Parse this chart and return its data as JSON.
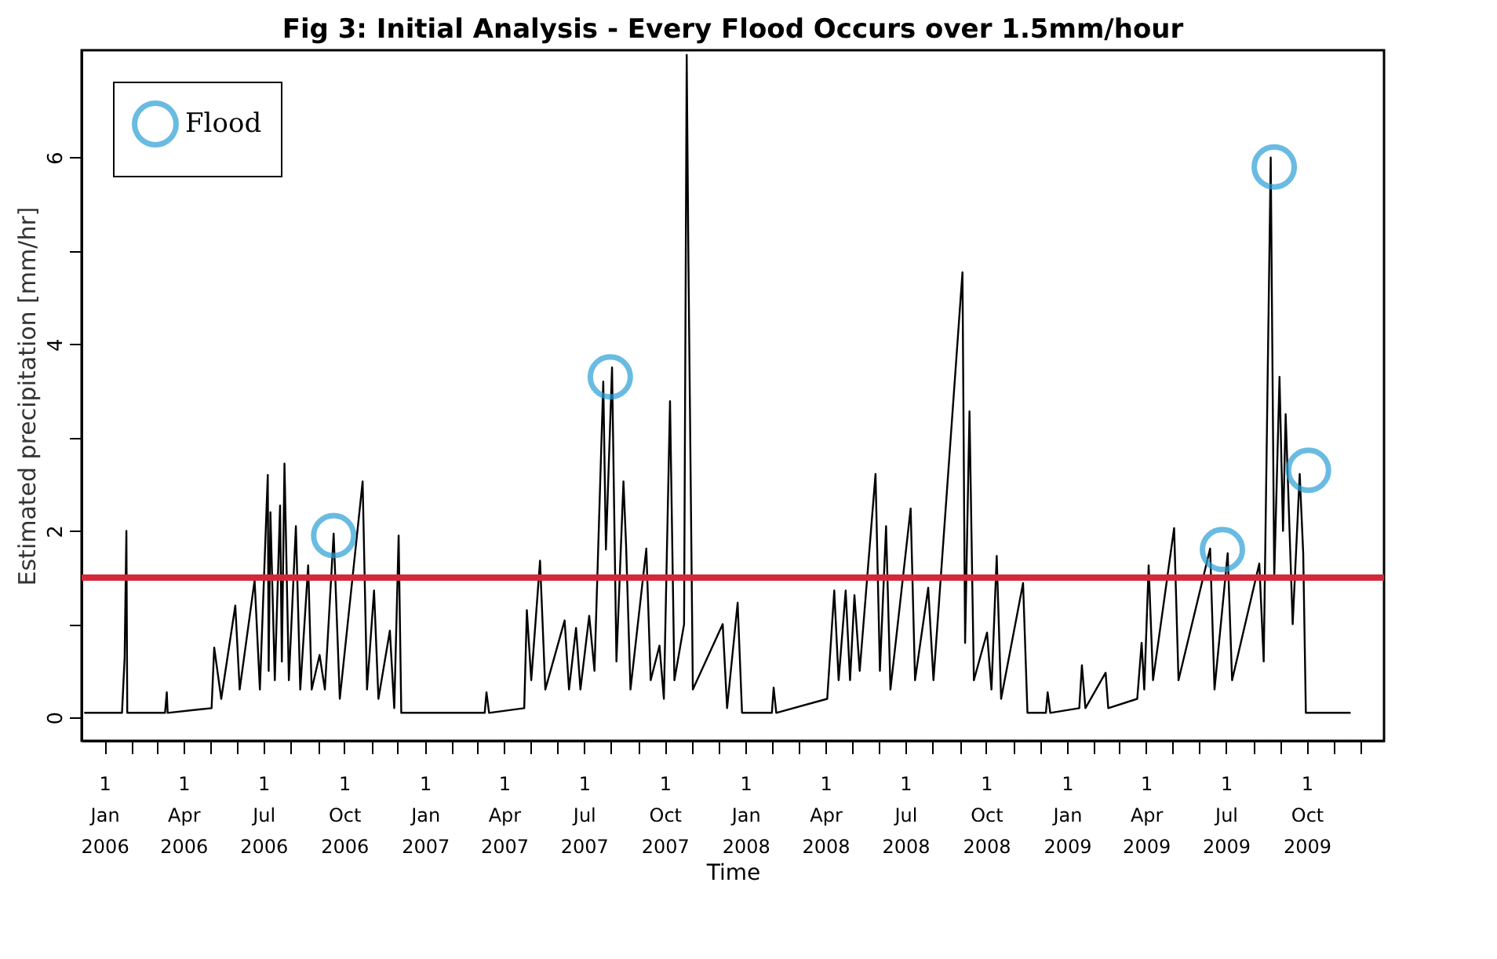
{
  "chart_data": {
    "type": "line",
    "title": "Fig 3: Initial Analysis - Every Flood Occurs over 1.5mm/hour",
    "xlabel": "Time",
    "ylabel": "Estimated precipitation [mm/hr]",
    "xlim": [
      "2005-12-06",
      "2009-12-28"
    ],
    "ylim": [
      -0.25,
      7.15
    ],
    "yticks": [
      0,
      {
        "value": 1,
        "label": null
      },
      2,
      {
        "value": 3,
        "label": null
      },
      4,
      {
        "value": 5,
        "label": null
      },
      6
    ],
    "xticks": [
      {
        "value": "2006-01-01",
        "label": "1 Jan 2006"
      },
      {
        "value": "2006-02-01",
        "label": null
      },
      {
        "value": "2006-03-01",
        "label": null
      },
      {
        "value": "2006-04-01",
        "label": "1 Apr 2006"
      },
      {
        "value": "2006-05-01",
        "label": null
      },
      {
        "value": "2006-06-01",
        "label": null
      },
      {
        "value": "2006-07-01",
        "label": "1 Jul 2006"
      },
      {
        "value": "2006-08-01",
        "label": null
      },
      {
        "value": "2006-09-01",
        "label": null
      },
      {
        "value": "2006-10-01",
        "label": "1 Oct 2006"
      },
      {
        "value": "2006-11-01",
        "label": null
      },
      {
        "value": "2006-12-01",
        "label": null
      },
      {
        "value": "2007-01-01",
        "label": "1 Jan 2007"
      },
      {
        "value": "2007-02-01",
        "label": null
      },
      {
        "value": "2007-03-01",
        "label": null
      },
      {
        "value": "2007-04-01",
        "label": "1 Apr 2007"
      },
      {
        "value": "2007-05-01",
        "label": null
      },
      {
        "value": "2007-06-01",
        "label": null
      },
      {
        "value": "2007-07-01",
        "label": "1 Jul 2007"
      },
      {
        "value": "2007-08-01",
        "label": null
      },
      {
        "value": "2007-09-01",
        "label": null
      },
      {
        "value": "2007-10-01",
        "label": "1 Oct 2007"
      },
      {
        "value": "2007-11-01",
        "label": null
      },
      {
        "value": "2007-12-01",
        "label": null
      },
      {
        "value": "2008-01-01",
        "label": "1 Jan 2008"
      },
      {
        "value": "2008-02-01",
        "label": null
      },
      {
        "value": "2008-03-01",
        "label": null
      },
      {
        "value": "2008-04-01",
        "label": "1 Apr 2008"
      },
      {
        "value": "2008-05-01",
        "label": null
      },
      {
        "value": "2008-06-01",
        "label": null
      },
      {
        "value": "2008-07-01",
        "label": "1 Jul 2008"
      },
      {
        "value": "2008-08-01",
        "label": null
      },
      {
        "value": "2008-09-01",
        "label": null
      },
      {
        "value": "2008-10-01",
        "label": "1 Oct 2008"
      },
      {
        "value": "2008-11-01",
        "label": null
      },
      {
        "value": "2008-12-01",
        "label": null
      },
      {
        "value": "2009-01-01",
        "label": "1 Jan 2009"
      },
      {
        "value": "2009-02-01",
        "label": null
      },
      {
        "value": "2009-03-01",
        "label": null
      },
      {
        "value": "2009-04-01",
        "label": "1 Apr 2009"
      },
      {
        "value": "2009-05-01",
        "label": null
      },
      {
        "value": "2009-06-01",
        "label": null
      },
      {
        "value": "2009-07-01",
        "label": "1 Jul 2009"
      },
      {
        "value": "2009-08-01",
        "label": null
      },
      {
        "value": "2009-09-01",
        "label": null
      },
      {
        "value": "2009-10-01",
        "label": "1 Oct 2009"
      },
      {
        "value": "2009-11-01",
        "label": null
      },
      {
        "value": "2009-12-01",
        "label": null
      }
    ],
    "grid": false,
    "legend": "top left",
    "ref_lines": [
      {
        "axis": "y",
        "value": 1.5,
        "color": "#d3283a"
      }
    ],
    "series": [
      {
        "color": "#000000",
        "marker": "none",
        "line_style": "solid",
        "x": [
          "2005-12-09",
          "2006-01-21",
          "2006-01-24",
          "2006-01-26",
          "2006-01-27",
          "2006-03-11",
          "2006-03-13",
          "2006-03-14",
          "2006-05-03",
          "2006-05-06",
          "2006-05-14",
          "2006-05-30",
          "2006-06-04",
          "2006-06-21",
          "2006-06-27",
          "2006-07-06",
          "2006-07-07",
          "2006-07-09",
          "2006-07-14",
          "2006-07-20",
          "2006-07-22",
          "2006-07-25",
          "2006-07-30",
          "2006-08-07",
          "2006-08-12",
          "2006-08-21",
          "2006-08-25",
          "2006-09-03",
          "2006-09-09",
          "2006-09-19",
          "2006-09-26",
          "2006-10-22",
          "2006-10-27",
          "2006-11-04",
          "2006-11-09",
          "2006-11-22",
          "2006-11-27",
          "2006-12-02",
          "2006-12-05",
          "2007-03-10",
          "2007-03-12",
          "2007-03-15",
          "2007-04-24",
          "2007-04-27",
          "2007-05-02",
          "2007-05-12",
          "2007-05-18",
          "2007-06-09",
          "2007-06-14",
          "2007-06-22",
          "2007-06-27",
          "2007-07-07",
          "2007-07-13",
          "2007-07-23",
          "2007-07-26",
          "2007-08-02",
          "2007-08-07",
          "2007-08-15",
          "2007-08-18",
          "2007-08-23",
          "2007-09-10",
          "2007-09-15",
          "2007-09-25",
          "2007-09-30",
          "2007-10-07",
          "2007-10-12",
          "2007-10-23",
          "2007-10-26",
          "2007-10-28",
          "2007-11-02",
          "2007-12-06",
          "2007-12-11",
          "2007-12-23",
          "2007-12-28",
          "2008-01-31",
          "2008-02-02",
          "2008-02-05",
          "2008-04-03",
          "2008-04-11",
          "2008-04-16",
          "2008-04-24",
          "2008-04-29",
          "2008-05-04",
          "2008-05-10",
          "2008-05-28",
          "2008-06-02",
          "2008-06-09",
          "2008-06-14",
          "2008-07-07",
          "2008-07-12",
          "2008-07-27",
          "2008-08-02",
          "2008-09-04",
          "2008-09-07",
          "2008-09-12",
          "2008-09-17",
          "2008-10-02",
          "2008-10-07",
          "2008-10-13",
          "2008-10-18",
          "2008-11-12",
          "2008-11-17",
          "2008-12-08",
          "2008-12-10",
          "2008-12-13",
          "2009-01-15",
          "2009-01-18",
          "2009-01-22",
          "2009-02-14",
          "2009-02-17",
          "2009-03-22",
          "2009-03-27",
          "2009-03-30",
          "2009-04-04",
          "2009-04-09",
          "2009-05-03",
          "2009-05-08",
          "2009-06-13",
          "2009-06-18",
          "2009-07-03",
          "2009-07-08",
          "2009-08-08",
          "2009-08-13",
          "2009-08-21",
          "2009-08-25",
          "2009-08-31",
          "2009-09-04",
          "2009-09-07",
          "2009-09-15",
          "2009-09-23",
          "2009-09-27",
          "2009-09-30",
          "2009-11-20"
        ],
        "values": [
          0.05,
          0.05,
          0.64,
          2.0,
          0.05,
          0.05,
          0.27,
          0.05,
          0.1,
          0.75,
          0.2,
          1.2,
          0.3,
          1.47,
          0.3,
          2.6,
          0.5,
          2.2,
          0.4,
          2.27,
          0.6,
          2.72,
          0.4,
          2.05,
          0.3,
          1.63,
          0.3,
          0.67,
          0.3,
          1.97,
          0.2,
          2.53,
          0.3,
          1.36,
          0.2,
          0.93,
          0.1,
          1.95,
          0.05,
          0.05,
          0.27,
          0.05,
          0.1,
          1.15,
          0.4,
          1.68,
          0.3,
          1.04,
          0.3,
          0.96,
          0.3,
          1.09,
          0.5,
          3.6,
          1.8,
          3.75,
          0.6,
          2.53,
          1.84,
          0.3,
          1.81,
          0.4,
          0.77,
          0.2,
          3.39,
          0.4,
          1.0,
          7.1,
          4.85,
          0.3,
          1.0,
          0.1,
          1.23,
          0.05,
          0.05,
          0.32,
          0.05,
          0.2,
          1.36,
          0.4,
          1.36,
          0.4,
          1.31,
          0.5,
          2.61,
          0.5,
          2.05,
          0.3,
          2.24,
          0.4,
          1.39,
          0.4,
          4.77,
          0.8,
          3.28,
          0.4,
          0.91,
          0.3,
          1.73,
          0.2,
          1.44,
          0.05,
          0.05,
          0.27,
          0.05,
          0.1,
          0.56,
          0.1,
          0.48,
          0.1,
          0.2,
          0.8,
          0.3,
          1.63,
          0.4,
          2.03,
          0.4,
          1.81,
          0.3,
          1.76,
          0.4,
          1.65,
          0.6,
          6.0,
          1.5,
          3.65,
          2.0,
          3.25,
          1.0,
          2.61,
          1.76,
          0.05,
          0.05
        ]
      },
      {
        "type": "scatter",
        "name": "Flood",
        "color": "#2a9fd6",
        "marker": "circle",
        "x": [
          "2006-09-19",
          "2007-07-31",
          "2009-06-27",
          "2009-08-25",
          "2009-10-03"
        ],
        "values": [
          1.95,
          3.65,
          1.8,
          5.9,
          2.65
        ]
      }
    ]
  }
}
